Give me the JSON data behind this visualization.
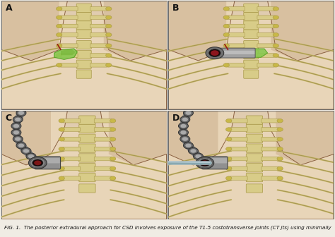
{
  "figure_width": 4.74,
  "figure_height": 3.36,
  "dpi": 100,
  "background_color": "#f0ece4",
  "panel_labels": [
    "A",
    "B",
    "C",
    "D"
  ],
  "panel_label_fontsize": 9,
  "panel_label_fontweight": "bold",
  "panel_label_color": "#111111",
  "border_color": "#666666",
  "border_linewidth": 0.7,
  "caption_text": "FIG. 1.  The posterior extradural approach for CSD involves exposure of the T1-5 costotransverse joints (CT jts) using minimally",
  "caption_fontsize": 5.2,
  "caption_color": "#111111",
  "skin_color": "#e8d5b8",
  "skin_dark": "#c8a888",
  "skin_side": "#d4b898",
  "spine_fill": "#d8cc88",
  "spine_edge": "#a89848",
  "rib_color": "#c8b868",
  "rib_edge": "#a09050",
  "green_fill": "#88c850",
  "green_edge": "#50a020",
  "red_color": "#991818",
  "retractor_gray": "#888888",
  "retractor_dark": "#444444",
  "retractor_light": "#aaaaaa",
  "dark_hole": "#1a0808",
  "arm_segments": 8,
  "bottom_strip_color": "#c8b898"
}
